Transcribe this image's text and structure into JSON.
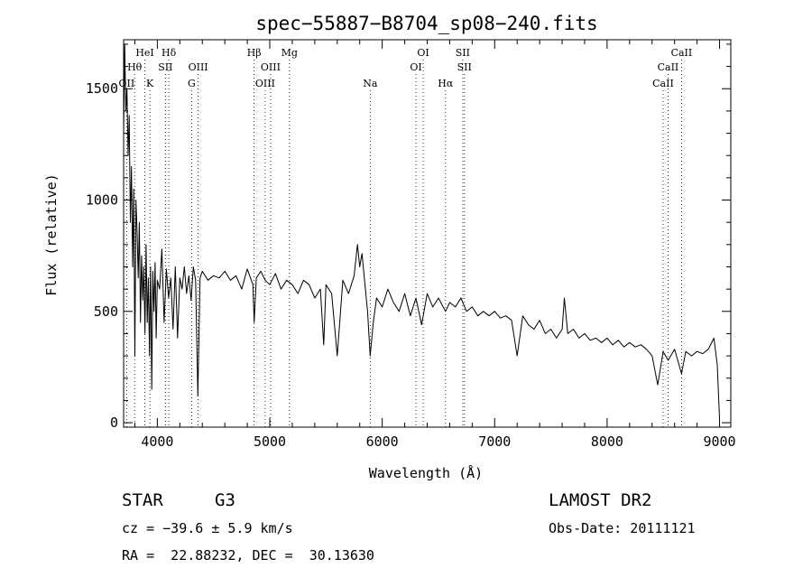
{
  "chart_data": {
    "type": "line",
    "title": "spec−55887−B8704_sp08−240.fits",
    "xlabel": "Wavelength (Å)",
    "ylabel": "Flux (relative)",
    "xlim": [
      3700,
      9100
    ],
    "ylim": [
      -20,
      1720
    ],
    "x_ticks": [
      4000,
      5000,
      6000,
      7000,
      8000,
      9000
    ],
    "y_ticks": [
      0,
      500,
      1000,
      1500
    ],
    "grid": false,
    "series": [
      {
        "x": [
          3700,
          3710,
          3720,
          3730,
          3740,
          3750,
          3760,
          3770,
          3780,
          3790,
          3800,
          3810,
          3820,
          3830,
          3840,
          3850,
          3860,
          3870,
          3880,
          3890,
          3900,
          3910,
          3920,
          3930,
          3940,
          3950,
          3960,
          3970,
          3980,
          3990,
          4000,
          4020,
          4040,
          4060,
          4080,
          4100,
          4120,
          4140,
          4160,
          4180,
          4200,
          4220,
          4240,
          4260,
          4280,
          4300,
          4320,
          4340,
          4360,
          4380,
          4400,
          4450,
          4500,
          4550,
          4600,
          4650,
          4700,
          4750,
          4800,
          4850,
          4861,
          4880,
          4920,
          4960,
          5000,
          5050,
          5100,
          5150,
          5200,
          5250,
          5300,
          5350,
          5400,
          5450,
          5480,
          5500,
          5550,
          5600,
          5650,
          5700,
          5750,
          5780,
          5800,
          5820,
          5850,
          5870,
          5893,
          5920,
          5950,
          6000,
          6050,
          6100,
          6150,
          6200,
          6250,
          6300,
          6350,
          6400,
          6450,
          6500,
          6563,
          6600,
          6650,
          6700,
          6750,
          6800,
          6850,
          6900,
          6950,
          7000,
          7050,
          7100,
          7150,
          7200,
          7250,
          7300,
          7350,
          7400,
          7450,
          7500,
          7550,
          7600,
          7620,
          7650,
          7700,
          7750,
          7800,
          7850,
          7900,
          7950,
          8000,
          8050,
          8100,
          8150,
          8200,
          8250,
          8300,
          8350,
          8400,
          8450,
          8498,
          8542,
          8600,
          8662,
          8700,
          8750,
          8800,
          8850,
          8900,
          8950,
          8980,
          9000
        ],
        "y": [
          1300,
          1700,
          1400,
          1500,
          1200,
          1380,
          900,
          1150,
          700,
          1050,
          300,
          1000,
          850,
          650,
          900,
          450,
          750,
          550,
          700,
          400,
          800,
          450,
          650,
          300,
          700,
          150,
          680,
          500,
          720,
          380,
          640,
          600,
          780,
          450,
          690,
          560,
          650,
          420,
          700,
          380,
          650,
          600,
          700,
          580,
          660,
          550,
          700,
          640,
          120,
          650,
          680,
          640,
          660,
          650,
          680,
          640,
          660,
          600,
          690,
          620,
          450,
          650,
          680,
          640,
          620,
          670,
          600,
          640,
          620,
          580,
          640,
          620,
          560,
          600,
          350,
          620,
          580,
          300,
          640,
          580,
          660,
          800,
          700,
          760,
          600,
          500,
          300,
          450,
          560,
          520,
          600,
          540,
          500,
          580,
          480,
          560,
          440,
          580,
          520,
          560,
          500,
          540,
          520,
          560,
          500,
          520,
          480,
          500,
          480,
          500,
          470,
          480,
          460,
          300,
          480,
          440,
          420,
          460,
          400,
          420,
          380,
          420,
          560,
          400,
          420,
          380,
          400,
          370,
          380,
          360,
          380,
          350,
          370,
          340,
          360,
          340,
          350,
          330,
          300,
          170,
          320,
          280,
          330,
          220,
          320,
          300,
          320,
          310,
          330,
          380,
          260,
          20
        ]
      }
    ],
    "line_markers": [
      {
        "label": "OII",
        "x": 3727,
        "row": 3
      },
      {
        "label": "Hθ",
        "x": 3798,
        "row": 2
      },
      {
        "label": "HeI",
        "x": 3889,
        "row": 1
      },
      {
        "label": "K",
        "x": 3934,
        "row": 3
      },
      {
        "label": "Hδ",
        "x": 4102,
        "row": 1
      },
      {
        "label": "SII",
        "x": 4072,
        "row": 2
      },
      {
        "label": "G",
        "x": 4305,
        "row": 3
      },
      {
        "label": "OIII",
        "x": 4363,
        "row": 2
      },
      {
        "label": "Hβ",
        "x": 4861,
        "row": 1
      },
      {
        "label": "OIII",
        "x": 4959,
        "row": 3
      },
      {
        "label": "OIII",
        "x": 5007,
        "row": 2
      },
      {
        "label": "Mg",
        "x": 5175,
        "row": 1
      },
      {
        "label": "Na",
        "x": 5893,
        "row": 3
      },
      {
        "label": "OI",
        "x": 6300,
        "row": 2
      },
      {
        "label": "OI",
        "x": 6364,
        "row": 1
      },
      {
        "label": "Hα",
        "x": 6563,
        "row": 3
      },
      {
        "label": "SII",
        "x": 6716,
        "row": 1
      },
      {
        "label": "SII",
        "x": 6731,
        "row": 2
      },
      {
        "label": "CaII",
        "x": 8498,
        "row": 3
      },
      {
        "label": "CaII",
        "x": 8542,
        "row": 2
      },
      {
        "label": "CaII",
        "x": 8662,
        "row": 1
      }
    ]
  },
  "info": {
    "object_class": "STAR",
    "subclass": "G3",
    "survey": "LAMOST DR2",
    "redshift_line": "cz = −39.6 ± 5.9 km/s",
    "obs_date": "Obs-Date: 20111121",
    "coords": "RA =  22.88232, DEC =  30.13630"
  }
}
